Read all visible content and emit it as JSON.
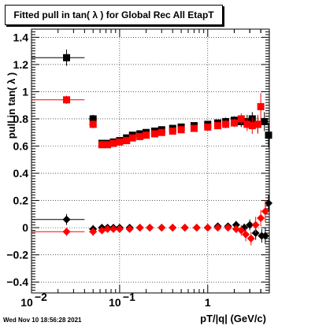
{
  "title": "Fitted pull in tan( λ ) for Global Rec All EtapT",
  "date_stamp": "Wed Nov 10 18:56:28 2021",
  "chart_data": {
    "type": "scatter",
    "title": "Fitted pull in tan( λ ) for Global Rec All EtapT",
    "xlabel": "pT/|q| (GeV/c)",
    "ylabel": "pull in tan( λ )",
    "xscale": "log",
    "xlim": [
      0.01,
      5.0
    ],
    "ylim": [
      -0.48,
      1.46
    ],
    "grid": true,
    "x_ticks": [
      {
        "value": 0.01,
        "label": "10",
        "exp": "−2"
      },
      {
        "value": 0.1,
        "label": "10",
        "exp": "−1"
      },
      {
        "value": 1,
        "label": "1",
        "exp": ""
      }
    ],
    "y_ticks": [
      {
        "value": -0.4,
        "label": "−0.4"
      },
      {
        "value": -0.2,
        "label": "−0.2"
      },
      {
        "value": 0,
        "label": "0"
      },
      {
        "value": 0.2,
        "label": "0.2"
      },
      {
        "value": 0.4,
        "label": "0.4"
      },
      {
        "value": 0.6,
        "label": "0.6"
      },
      {
        "value": 0.8,
        "label": "0.8"
      },
      {
        "value": 1,
        "label": "1"
      },
      {
        "value": 1.2,
        "label": "1.2"
      },
      {
        "value": 1.4,
        "label": "1.4"
      }
    ],
    "series": [
      {
        "color": "#000000",
        "marker": "square",
        "points": [
          {
            "x": 0.025,
            "y": 1.25,
            "xlo": 0.01,
            "xhi": 0.04,
            "err": 0.06
          },
          {
            "x": 0.05,
            "y": 0.8,
            "xlo": 0.045,
            "xhi": 0.055,
            "err": 0.03
          },
          {
            "x": 0.063,
            "y": 0.62,
            "err": 0.02
          },
          {
            "x": 0.073,
            "y": 0.62,
            "err": 0.02
          },
          {
            "x": 0.085,
            "y": 0.63,
            "err": 0.02
          },
          {
            "x": 0.1,
            "y": 0.64,
            "err": 0.02
          },
          {
            "x": 0.12,
            "y": 0.66,
            "err": 0.02
          },
          {
            "x": 0.14,
            "y": 0.68,
            "err": 0.02
          },
          {
            "x": 0.17,
            "y": 0.69,
            "err": 0.02
          },
          {
            "x": 0.2,
            "y": 0.7,
            "err": 0.02
          },
          {
            "x": 0.25,
            "y": 0.71,
            "err": 0.02
          },
          {
            "x": 0.3,
            "y": 0.72,
            "err": 0.02
          },
          {
            "x": 0.4,
            "y": 0.73,
            "err": 0.02
          },
          {
            "x": 0.5,
            "y": 0.74,
            "err": 0.02
          },
          {
            "x": 0.7,
            "y": 0.75,
            "err": 0.02
          },
          {
            "x": 1.0,
            "y": 0.76,
            "err": 0.02
          },
          {
            "x": 1.3,
            "y": 0.77,
            "err": 0.02
          },
          {
            "x": 1.6,
            "y": 0.78,
            "err": 0.03
          },
          {
            "x": 2.0,
            "y": 0.79,
            "err": 0.03
          },
          {
            "x": 2.4,
            "y": 0.78,
            "err": 0.04
          },
          {
            "x": 2.8,
            "y": 0.78,
            "err": 0.05
          },
          {
            "x": 3.2,
            "y": 0.8,
            "err": 0.05
          },
          {
            "x": 3.7,
            "y": 0.76,
            "err": 0.06
          },
          {
            "x": 4.4,
            "y": 0.78,
            "err": 0.07
          },
          {
            "x": 4.9,
            "y": 0.68,
            "err": 0.09
          }
        ]
      },
      {
        "color": "#ff0000",
        "marker": "square",
        "points": [
          {
            "x": 0.025,
            "y": 0.94,
            "xlo": 0.01,
            "xhi": 0.04,
            "err": 0.03
          },
          {
            "x": 0.05,
            "y": 0.76,
            "xlo": 0.045,
            "xhi": 0.055,
            "err": 0.03
          },
          {
            "x": 0.063,
            "y": 0.61,
            "err": 0.02
          },
          {
            "x": 0.073,
            "y": 0.61,
            "err": 0.02
          },
          {
            "x": 0.085,
            "y": 0.62,
            "err": 0.02
          },
          {
            "x": 0.1,
            "y": 0.63,
            "err": 0.02
          },
          {
            "x": 0.12,
            "y": 0.64,
            "err": 0.02
          },
          {
            "x": 0.14,
            "y": 0.66,
            "err": 0.02
          },
          {
            "x": 0.17,
            "y": 0.67,
            "err": 0.02
          },
          {
            "x": 0.2,
            "y": 0.68,
            "err": 0.02
          },
          {
            "x": 0.25,
            "y": 0.69,
            "err": 0.02
          },
          {
            "x": 0.3,
            "y": 0.7,
            "err": 0.02
          },
          {
            "x": 0.4,
            "y": 0.71,
            "err": 0.02
          },
          {
            "x": 0.5,
            "y": 0.72,
            "err": 0.02
          },
          {
            "x": 0.7,
            "y": 0.73,
            "err": 0.02
          },
          {
            "x": 1.0,
            "y": 0.74,
            "err": 0.02
          },
          {
            "x": 1.3,
            "y": 0.75,
            "err": 0.02
          },
          {
            "x": 1.6,
            "y": 0.76,
            "err": 0.03
          },
          {
            "x": 2.0,
            "y": 0.77,
            "err": 0.03
          },
          {
            "x": 2.4,
            "y": 0.8,
            "err": 0.04
          },
          {
            "x": 2.8,
            "y": 0.76,
            "err": 0.05
          },
          {
            "x": 3.2,
            "y": 0.75,
            "err": 0.06
          },
          {
            "x": 3.7,
            "y": 0.76,
            "err": 0.07
          },
          {
            "x": 4.0,
            "y": 0.89,
            "err": 0.1
          }
        ]
      },
      {
        "color": "#000000",
        "marker": "diamond",
        "points": [
          {
            "x": 0.025,
            "y": 0.06,
            "xlo": 0.01,
            "xhi": 0.04,
            "err": 0.04
          },
          {
            "x": 0.05,
            "y": -0.01,
            "xlo": 0.045,
            "xhi": 0.055,
            "err": 0.03
          },
          {
            "x": 0.063,
            "y": 0.0,
            "err": 0.02
          },
          {
            "x": 0.073,
            "y": 0.0,
            "err": 0.01
          },
          {
            "x": 0.085,
            "y": 0.0,
            "err": 0.01
          },
          {
            "x": 0.1,
            "y": 0.0,
            "err": 0.01
          },
          {
            "x": 0.13,
            "y": 0.0,
            "err": 0.01
          },
          {
            "x": 0.17,
            "y": 0.0,
            "err": 0.01
          },
          {
            "x": 0.22,
            "y": 0.0,
            "err": 0.01
          },
          {
            "x": 0.3,
            "y": 0.0,
            "err": 0.01
          },
          {
            "x": 0.4,
            "y": 0.0,
            "err": 0.01
          },
          {
            "x": 0.55,
            "y": 0.0,
            "err": 0.01
          },
          {
            "x": 0.75,
            "y": 0.0,
            "err": 0.01
          },
          {
            "x": 1.0,
            "y": 0.0,
            "err": 0.01
          },
          {
            "x": 1.3,
            "y": 0.01,
            "err": 0.02
          },
          {
            "x": 1.7,
            "y": 0.01,
            "err": 0.02
          },
          {
            "x": 2.1,
            "y": 0.02,
            "err": 0.03
          },
          {
            "x": 2.6,
            "y": 0.0,
            "err": 0.03
          },
          {
            "x": 3.0,
            "y": 0.02,
            "err": 0.04
          },
          {
            "x": 3.5,
            "y": -0.04,
            "err": 0.05
          },
          {
            "x": 4.1,
            "y": -0.06,
            "err": 0.05
          },
          {
            "x": 4.5,
            "y": -0.06,
            "err": 0.06
          },
          {
            "x": 4.9,
            "y": 0.18,
            "err": 0.06
          }
        ]
      },
      {
        "color": "#ff0000",
        "marker": "diamond",
        "points": [
          {
            "x": 0.025,
            "y": -0.03,
            "xlo": 0.01,
            "xhi": 0.04,
            "err": 0.03
          },
          {
            "x": 0.05,
            "y": -0.03,
            "xlo": 0.045,
            "xhi": 0.055,
            "err": 0.03
          },
          {
            "x": 0.063,
            "y": -0.02,
            "err": 0.02
          },
          {
            "x": 0.073,
            "y": -0.01,
            "err": 0.01
          },
          {
            "x": 0.085,
            "y": -0.01,
            "err": 0.01
          },
          {
            "x": 0.1,
            "y": -0.01,
            "err": 0.01
          },
          {
            "x": 0.13,
            "y": -0.01,
            "err": 0.01
          },
          {
            "x": 0.17,
            "y": 0.0,
            "err": 0.01
          },
          {
            "x": 0.22,
            "y": 0.0,
            "err": 0.01
          },
          {
            "x": 0.3,
            "y": 0.0,
            "err": 0.01
          },
          {
            "x": 0.4,
            "y": 0.0,
            "err": 0.01
          },
          {
            "x": 0.55,
            "y": 0.0,
            "err": 0.01
          },
          {
            "x": 0.75,
            "y": 0.0,
            "err": 0.01
          },
          {
            "x": 1.0,
            "y": 0.0,
            "err": 0.01
          },
          {
            "x": 1.3,
            "y": 0.0,
            "err": 0.02
          },
          {
            "x": 1.7,
            "y": 0.0,
            "err": 0.02
          },
          {
            "x": 2.1,
            "y": -0.01,
            "err": 0.03
          },
          {
            "x": 2.4,
            "y": -0.02,
            "err": 0.04
          },
          {
            "x": 2.7,
            "y": -0.05,
            "err": 0.05
          },
          {
            "x": 3.1,
            "y": -0.08,
            "err": 0.05
          },
          {
            "x": 3.5,
            "y": 0.02,
            "err": 0.06
          },
          {
            "x": 4.0,
            "y": 0.07,
            "err": 0.06
          },
          {
            "x": 4.5,
            "y": 0.12,
            "err": 0.08
          }
        ]
      }
    ]
  }
}
